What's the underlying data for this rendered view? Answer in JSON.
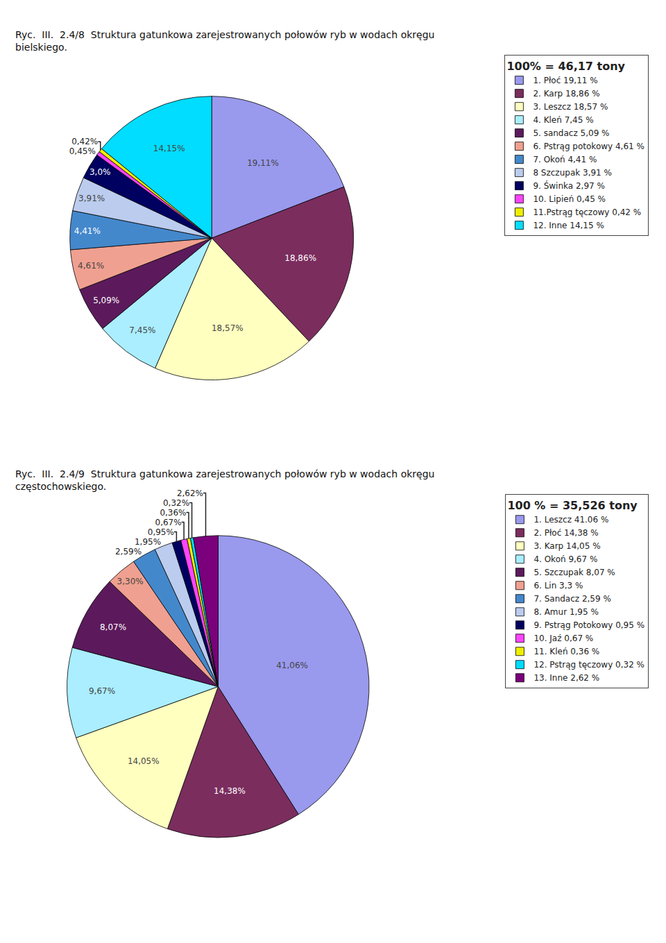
{
  "chart_data": [
    {
      "type": "pie",
      "title": "Ryc.  III.  2.4/8  Struktura gatunkowa zarejestrowanych połowów ryb w wodach okręgu\nbielskiego.",
      "subtitle": "100% = 46,17 tony",
      "categories": [
        "1. Płoć 19,11 %",
        "2. Karp 18,86 %",
        "3. Leszcz 18,57 %",
        "4. Kleń 7,45 %",
        "5. sandacz 5,09 %",
        "6. Pstrąg potokowy 4,61 %",
        "7. Okoń 4,41 %",
        "8 Szczupak 3,91 %",
        "9. Świnka 2,97 %",
        "10. Lipień 0,45 %",
        "11.Pstrąg tęczowy 0,42 %",
        "12. Inne 14,15 %"
      ],
      "values": [
        19.11,
        18.86,
        18.57,
        7.45,
        5.09,
        4.61,
        4.41,
        3.91,
        2.97,
        0.45,
        0.42,
        14.15
      ],
      "value_labels": [
        "19,11%",
        "18,86%",
        "18,57%",
        "7,45%",
        "5,09%",
        "4,61%",
        "4,41%",
        "3,91%",
        "3,0%",
        "0,45%",
        "0,42%",
        "14,15%"
      ],
      "colors": [
        "#9999EE",
        "#7B2D5E",
        "#FFFFC0",
        "#AAEEFF",
        "#5C1A5C",
        "#F0A090",
        "#4488CC",
        "#BBCCEE",
        "#000060",
        "#FF44FF",
        "#EEEE00",
        "#00DDFF"
      ],
      "legend": "upper right",
      "data_labels": true
    },
    {
      "type": "pie",
      "title": "Ryc.  III.  2.4/9  Struktura gatunkowa zarejestrowanych połowów ryb w wodach okręgu\nczęstochowskiego.",
      "subtitle": "100 % = 35,526 tony",
      "categories": [
        "1. Leszcz 41.06 %",
        "2. Płoć 14,38 %",
        "3. Karp 14,05 %",
        "4. Okoń 9,67 %",
        "5. Szczupak 8,07 %",
        "6. Lin 3,3 %",
        "7. Sandacz 2,59 %",
        "8. Amur 1,95 %",
        "9. Pstrąg Potokowy 0,95 %",
        "10. Jaź 0,67 %",
        "11. Kleń 0,36 %",
        "12. Pstrąg tęczowy 0,32 %",
        "13. Inne 2,62 %"
      ],
      "values": [
        41.06,
        14.38,
        14.05,
        9.67,
        8.07,
        3.3,
        2.59,
        1.95,
        0.95,
        0.67,
        0.36,
        0.32,
        2.62
      ],
      "value_labels": [
        "41,06%",
        "14,38%",
        "14,05%",
        "9,67%",
        "8,07%",
        "3,30%",
        "2,59%",
        "1,95%",
        "0,95%",
        "0,67%",
        "0,36%",
        "0,32%",
        "2,62%"
      ],
      "colors": [
        "#9999EE",
        "#7B2D5E",
        "#FFFFC0",
        "#AAEEFF",
        "#5C1A5C",
        "#F0A090",
        "#4488CC",
        "#BBCCEE",
        "#000060",
        "#FF44FF",
        "#EEEE00",
        "#00DDFF",
        "#7B007B"
      ],
      "legend": "upper right",
      "data_labels": true
    }
  ]
}
